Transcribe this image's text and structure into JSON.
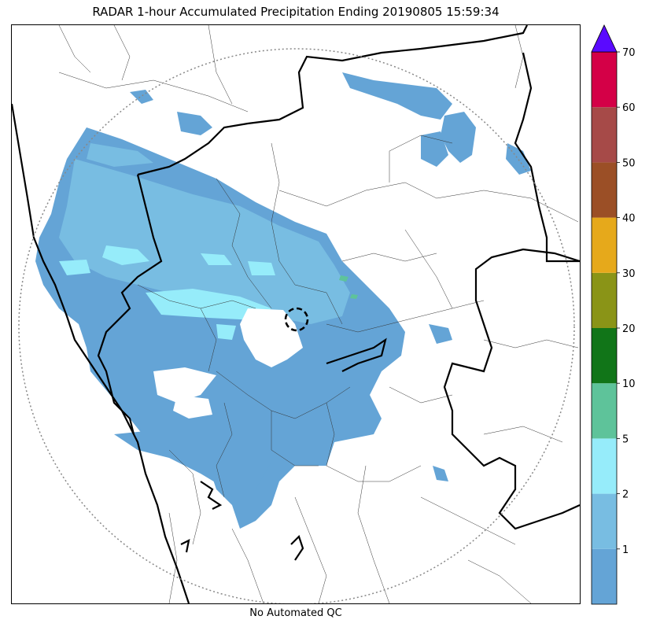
{
  "title": "RADAR 1-hour Accumulated Precipitation Ending 20190805 15:59:34",
  "footer": "No Automated QC",
  "colorbar": {
    "bins": [
      {
        "max": 1,
        "color": "#64a4d6"
      },
      {
        "min": 1,
        "max": 2,
        "color": "#78bde2"
      },
      {
        "min": 2,
        "max": 5,
        "color": "#96ecfa"
      },
      {
        "min": 5,
        "max": 10,
        "color": "#5ec39a"
      },
      {
        "min": 10,
        "max": 20,
        "color": "#117518"
      },
      {
        "min": 20,
        "max": 30,
        "color": "#8a9417"
      },
      {
        "min": 30,
        "max": 40,
        "color": "#e6a91b"
      },
      {
        "min": 40,
        "max": 50,
        "color": "#9b4f26"
      },
      {
        "min": 50,
        "max": 60,
        "color": "#a64a48"
      },
      {
        "min": 60,
        "max": 70,
        "color": "#d40047"
      }
    ],
    "ticks": [
      "1",
      "2",
      "5",
      "10",
      "20",
      "30",
      "40",
      "50",
      "60",
      "70"
    ],
    "extend_color": "#5a0aff"
  }
}
